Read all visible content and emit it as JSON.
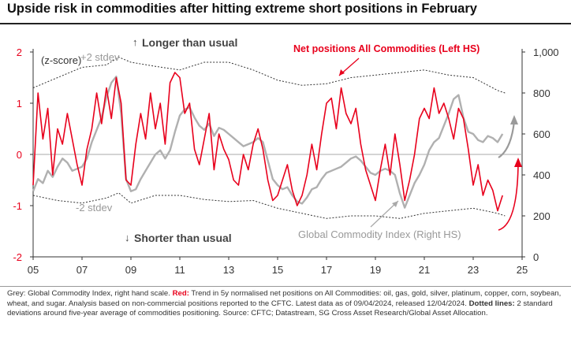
{
  "title": "Upside risk in commodities after hitting extreme short positions in February",
  "footnote": {
    "grey_label": "Grey:",
    "grey_text": " Global Commodity Index, right hand scale. ",
    "red_label": "Red:",
    "red_text": " Trend in 5y normalised net positions on All Commodities: oil, gas, gold, silver, platinum, copper, corn, soybean, wheat, and sugar. Analysis based on non-commercial positions reported to the CFTC. Latest data as of 09/04/2024, released 12/04/2024. ",
    "dotted_label": "Dotted lines:",
    "dotted_text": " 2 standard deviations around five-year average of commodities positioning. Source: CFTC; Datastream, SG Cross Asset Research/Global Asset Allocation."
  },
  "chart_data": {
    "type": "line",
    "title": "Upside risk in commodities after hitting extreme short positions in February",
    "left_axis": {
      "label": "(z-score)",
      "min": -2,
      "max": 2,
      "ticks": [
        -2,
        -1,
        0,
        1,
        2
      ],
      "tick_labels": [
        "-2",
        "-1",
        "0",
        "1",
        "2"
      ]
    },
    "right_axis": {
      "min": 0,
      "max": 1000,
      "ticks": [
        0,
        200,
        400,
        600,
        800,
        1000
      ],
      "tick_labels": [
        "0",
        "200",
        "400",
        "600",
        "800",
        "1,000"
      ]
    },
    "x_axis": {
      "min": 2005,
      "max": 2025,
      "ticks": [
        2005,
        2007,
        2009,
        2011,
        2013,
        2015,
        2017,
        2019,
        2021,
        2023,
        2025
      ],
      "tick_labels": [
        "05",
        "07",
        "09",
        "11",
        "13",
        "15",
        "17",
        "19",
        "21",
        "23",
        "25"
      ]
    },
    "annotations": {
      "longer": "Longer than usual",
      "shorter": "Shorter than usual",
      "plus2": "+2 stdev",
      "minus2": "-2 stdev",
      "net_positions": "Net positions All Commodities (Left HS)",
      "gci": "Global Commodity Index (Right HS)"
    },
    "colors": {
      "red": "#e8001c",
      "grey": "#b0b0b0",
      "dotted": "#333333",
      "zero": "#aaaaaa",
      "arrow_red": "#e8001c",
      "arrow_grey": "#9a9a9a"
    },
    "series": [
      {
        "name": "Net positions All Commodities (Left HS)",
        "axis": "left",
        "color": "#e8001c",
        "x": [
          2005.0,
          2005.2,
          2005.4,
          2005.6,
          2005.8,
          2006.0,
          2006.2,
          2006.4,
          2006.6,
          2006.8,
          2007.0,
          2007.2,
          2007.4,
          2007.6,
          2007.8,
          2008.0,
          2008.2,
          2008.4,
          2008.6,
          2008.8,
          2009.0,
          2009.2,
          2009.4,
          2009.6,
          2009.8,
          2010.0,
          2010.2,
          2010.4,
          2010.6,
          2010.8,
          2011.0,
          2011.2,
          2011.4,
          2011.6,
          2011.8,
          2012.0,
          2012.2,
          2012.4,
          2012.6,
          2012.8,
          2013.0,
          2013.2,
          2013.4,
          2013.6,
          2013.8,
          2014.0,
          2014.2,
          2014.4,
          2014.6,
          2014.8,
          2015.0,
          2015.2,
          2015.4,
          2015.6,
          2015.8,
          2016.0,
          2016.2,
          2016.4,
          2016.6,
          2016.8,
          2017.0,
          2017.2,
          2017.4,
          2017.6,
          2017.8,
          2018.0,
          2018.2,
          2018.4,
          2018.6,
          2018.8,
          2019.0,
          2019.2,
          2019.4,
          2019.6,
          2019.8,
          2020.0,
          2020.2,
          2020.4,
          2020.6,
          2020.8,
          2021.0,
          2021.2,
          2021.4,
          2021.6,
          2021.8,
          2022.0,
          2022.2,
          2022.4,
          2022.6,
          2022.8,
          2023.0,
          2023.2,
          2023.4,
          2023.6,
          2023.8,
          2024.0,
          2024.2
        ],
        "values": [
          -0.6,
          1.2,
          0.3,
          0.9,
          -0.4,
          0.5,
          0.2,
          0.8,
          0.3,
          -0.2,
          -0.6,
          0.1,
          0.5,
          1.2,
          0.6,
          1.3,
          0.7,
          1.5,
          1.0,
          -0.5,
          -0.6,
          0.2,
          0.8,
          0.3,
          1.2,
          0.5,
          1.0,
          0.2,
          1.4,
          1.6,
          1.5,
          0.8,
          1.0,
          0.1,
          -0.2,
          0.3,
          0.8,
          -0.3,
          0.4,
          0.1,
          -0.1,
          -0.5,
          -0.6,
          0.0,
          -0.3,
          0.2,
          0.5,
          0.1,
          -0.5,
          -0.9,
          -0.8,
          -0.5,
          -0.2,
          -0.7,
          -1.0,
          -0.8,
          -0.4,
          0.2,
          -0.3,
          0.4,
          1.0,
          1.1,
          0.5,
          1.3,
          0.8,
          0.6,
          0.9,
          0.2,
          -0.3,
          -0.6,
          -0.9,
          -0.3,
          0.2,
          -0.4,
          0.4,
          -0.2,
          -0.9,
          -0.5,
          0.0,
          0.7,
          0.9,
          0.7,
          1.3,
          0.8,
          1.0,
          0.7,
          0.3,
          0.9,
          0.7,
          0.1,
          -0.6,
          -0.2,
          -0.8,
          -0.5,
          -0.7,
          -1.1,
          -0.8
        ]
      },
      {
        "name": "Global Commodity Index (Right HS)",
        "axis": "right",
        "color": "#b0b0b0",
        "x": [
          2005.0,
          2005.2,
          2005.4,
          2005.6,
          2005.8,
          2006.0,
          2006.2,
          2006.4,
          2006.6,
          2006.8,
          2007.0,
          2007.2,
          2007.4,
          2007.6,
          2007.8,
          2008.0,
          2008.2,
          2008.4,
          2008.6,
          2008.8,
          2009.0,
          2009.2,
          2009.4,
          2009.6,
          2009.8,
          2010.0,
          2010.2,
          2010.4,
          2010.6,
          2010.8,
          2011.0,
          2011.2,
          2011.4,
          2011.6,
          2011.8,
          2012.0,
          2012.2,
          2012.4,
          2012.6,
          2012.8,
          2013.0,
          2013.2,
          2013.4,
          2013.6,
          2013.8,
          2014.0,
          2014.2,
          2014.4,
          2014.6,
          2014.8,
          2015.0,
          2015.2,
          2015.4,
          2015.6,
          2015.8,
          2016.0,
          2016.2,
          2016.4,
          2016.6,
          2016.8,
          2017.0,
          2017.2,
          2017.4,
          2017.6,
          2017.8,
          2018.0,
          2018.2,
          2018.4,
          2018.6,
          2018.8,
          2019.0,
          2019.2,
          2019.4,
          2019.6,
          2019.8,
          2020.0,
          2020.2,
          2020.4,
          2020.6,
          2020.8,
          2021.0,
          2021.2,
          2021.4,
          2021.6,
          2021.8,
          2022.0,
          2022.2,
          2022.4,
          2022.6,
          2022.8,
          2023.0,
          2023.2,
          2023.4,
          2023.6,
          2023.8,
          2024.0,
          2024.2
        ],
        "values": [
          320,
          380,
          360,
          420,
          390,
          440,
          480,
          460,
          420,
          430,
          440,
          480,
          560,
          620,
          680,
          780,
          850,
          880,
          700,
          380,
          320,
          330,
          380,
          420,
          460,
          500,
          520,
          480,
          520,
          610,
          690,
          720,
          730,
          680,
          640,
          620,
          650,
          590,
          630,
          620,
          600,
          580,
          560,
          540,
          550,
          560,
          580,
          560,
          470,
          380,
          350,
          330,
          340,
          300,
          270,
          260,
          290,
          330,
          340,
          380,
          410,
          420,
          430,
          440,
          460,
          480,
          490,
          470,
          440,
          410,
          400,
          420,
          430,
          420,
          400,
          310,
          240,
          300,
          360,
          400,
          450,
          520,
          560,
          580,
          640,
          700,
          770,
          790,
          680,
          610,
          600,
          570,
          560,
          590,
          580,
          560,
          600
        ]
      }
    ],
    "bands": {
      "upper_label": "+2 stdev",
      "lower_label": "-2 stdev",
      "x": [
        2005.0,
        2006.0,
        2007.0,
        2008.0,
        2008.5,
        2009.0,
        2010.0,
        2011.0,
        2012.0,
        2013.0,
        2014.0,
        2015.0,
        2016.0,
        2017.0,
        2018.0,
        2019.0,
        2020.0,
        2021.0,
        2022.0,
        2023.0,
        2024.0,
        2024.3
      ],
      "upper": [
        1.3,
        1.5,
        1.7,
        1.75,
        1.9,
        1.8,
        1.72,
        1.65,
        1.8,
        1.8,
        1.65,
        1.45,
        1.35,
        1.38,
        1.5,
        1.55,
        1.6,
        1.65,
        1.55,
        1.5,
        1.25,
        1.2
      ],
      "lower": [
        -0.8,
        -0.9,
        -0.95,
        -0.85,
        -0.75,
        -0.95,
        -0.8,
        -0.8,
        -0.88,
        -0.92,
        -0.9,
        -1.05,
        -1.15,
        -1.25,
        -1.2,
        -1.2,
        -1.25,
        -1.15,
        -1.1,
        -1.05,
        -1.15,
        -1.2
      ]
    }
  }
}
